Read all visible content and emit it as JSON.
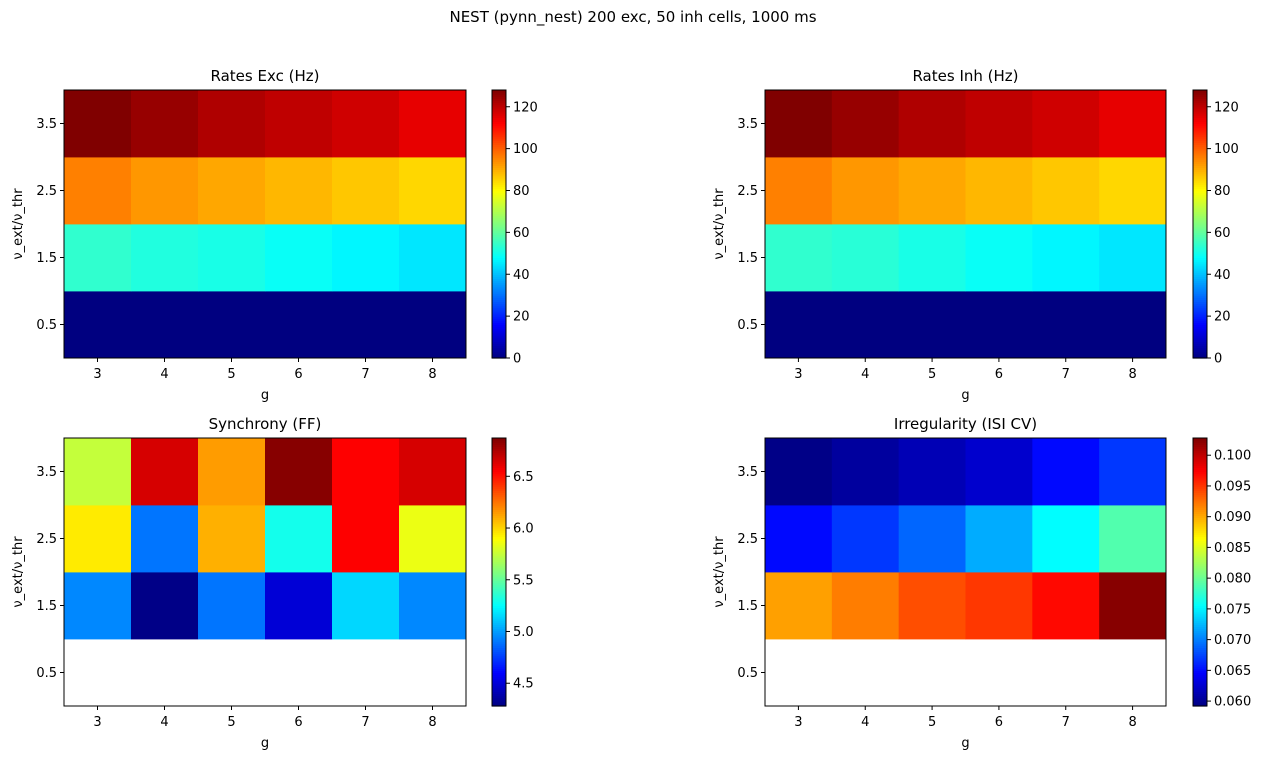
{
  "figure": {
    "suptitle": "NEST (pynn_nest) 200 exc, 50 inh cells, 1000 ms",
    "colormap": "jet",
    "missing_color": "#ffffff"
  },
  "chart_data": [
    {
      "type": "heatmap",
      "title": "Rates Exc (Hz)",
      "xlabel": "g",
      "ylabel": "ν_ext/ν_thr",
      "x": [
        3,
        4,
        5,
        6,
        7,
        8
      ],
      "y": [
        0.5,
        1.5,
        2.5,
        3.5
      ],
      "x_ticklabels": [
        "3",
        "4",
        "5",
        "6",
        "7",
        "8"
      ],
      "y_ticklabels": [
        "0.5",
        "1.5",
        "2.5",
        "3.5"
      ],
      "values": [
        [
          0.1,
          0.1,
          0.1,
          0.1,
          0.1,
          0.1
        ],
        [
          54,
          52,
          51,
          49,
          47,
          45
        ],
        [
          96,
          93,
          91,
          89,
          87,
          85
        ],
        [
          128,
          125,
          122,
          120,
          118,
          115
        ]
      ],
      "colorbar": {
        "range": [
          0,
          128
        ],
        "ticks": [
          0,
          20,
          40,
          60,
          80,
          100,
          120
        ],
        "ticklabels": [
          "0",
          "20",
          "40",
          "60",
          "80",
          "100",
          "120"
        ]
      }
    },
    {
      "type": "heatmap",
      "title": "Rates Inh (Hz)",
      "xlabel": "g",
      "ylabel": "ν_ext/ν_thr",
      "x": [
        3,
        4,
        5,
        6,
        7,
        8
      ],
      "y": [
        0.5,
        1.5,
        2.5,
        3.5
      ],
      "x_ticklabels": [
        "3",
        "4",
        "5",
        "6",
        "7",
        "8"
      ],
      "y_ticklabels": [
        "0.5",
        "1.5",
        "2.5",
        "3.5"
      ],
      "values": [
        [
          0.1,
          0.1,
          0.1,
          0.1,
          0.1,
          0.1
        ],
        [
          54,
          53,
          51,
          49,
          47,
          45
        ],
        [
          96,
          93,
          91,
          89,
          87,
          85
        ],
        [
          128,
          125,
          122,
          120,
          118,
          115
        ]
      ],
      "colorbar": {
        "range": [
          0,
          128
        ],
        "ticks": [
          0,
          20,
          40,
          60,
          80,
          100,
          120
        ],
        "ticklabels": [
          "0",
          "20",
          "40",
          "60",
          "80",
          "100",
          "120"
        ]
      }
    },
    {
      "type": "heatmap",
      "title": "Synchrony (FF)",
      "xlabel": "g",
      "ylabel": "ν_ext/ν_thr",
      "x": [
        3,
        4,
        5,
        6,
        7,
        8
      ],
      "y": [
        0.5,
        1.5,
        2.5,
        3.5
      ],
      "x_ticklabels": [
        "3",
        "4",
        "5",
        "6",
        "7",
        "8"
      ],
      "y_ticklabels": [
        "0.5",
        "1.5",
        "2.5",
        "3.5"
      ],
      "values": [
        [
          null,
          null,
          null,
          null,
          null,
          null
        ],
        [
          4.95,
          4.3,
          4.9,
          4.5,
          5.15,
          4.95
        ],
        [
          5.95,
          4.9,
          6.1,
          5.3,
          6.55,
          5.85
        ],
        [
          5.75,
          6.65,
          6.15,
          6.85,
          6.55,
          6.65
        ]
      ],
      "colorbar": {
        "range": [
          4.28,
          6.87
        ],
        "ticks": [
          4.5,
          5.0,
          5.5,
          6.0,
          6.5
        ],
        "ticklabels": [
          "4.5",
          "5.0",
          "5.5",
          "6.0",
          "6.5"
        ]
      }
    },
    {
      "type": "heatmap",
      "title": "Irregularity (ISI CV)",
      "xlabel": "g",
      "ylabel": "ν_ext/ν_thr",
      "x": [
        3,
        4,
        5,
        6,
        7,
        8
      ],
      "y": [
        0.5,
        1.5,
        2.5,
        3.5
      ],
      "x_ticklabels": [
        "3",
        "4",
        "5",
        "6",
        "7",
        "8"
      ],
      "y_ticklabels": [
        "0.5",
        "1.5",
        "2.5",
        "3.5"
      ],
      "values": [
        [
          null,
          null,
          null,
          null,
          null,
          null
        ],
        [
          0.0905,
          0.092,
          0.094,
          0.095,
          0.097,
          0.1025
        ],
        [
          0.065,
          0.067,
          0.069,
          0.072,
          0.0755,
          0.079
        ],
        [
          0.0595,
          0.0605,
          0.0615,
          0.0625,
          0.065,
          0.067
        ]
      ],
      "colorbar": {
        "range": [
          0.0592,
          0.1028
        ],
        "ticks": [
          0.06,
          0.065,
          0.07,
          0.075,
          0.08,
          0.085,
          0.09,
          0.095,
          0.1
        ],
        "ticklabels": [
          "0.060",
          "0.065",
          "0.070",
          "0.075",
          "0.080",
          "0.085",
          "0.090",
          "0.095",
          "0.100"
        ]
      }
    }
  ]
}
